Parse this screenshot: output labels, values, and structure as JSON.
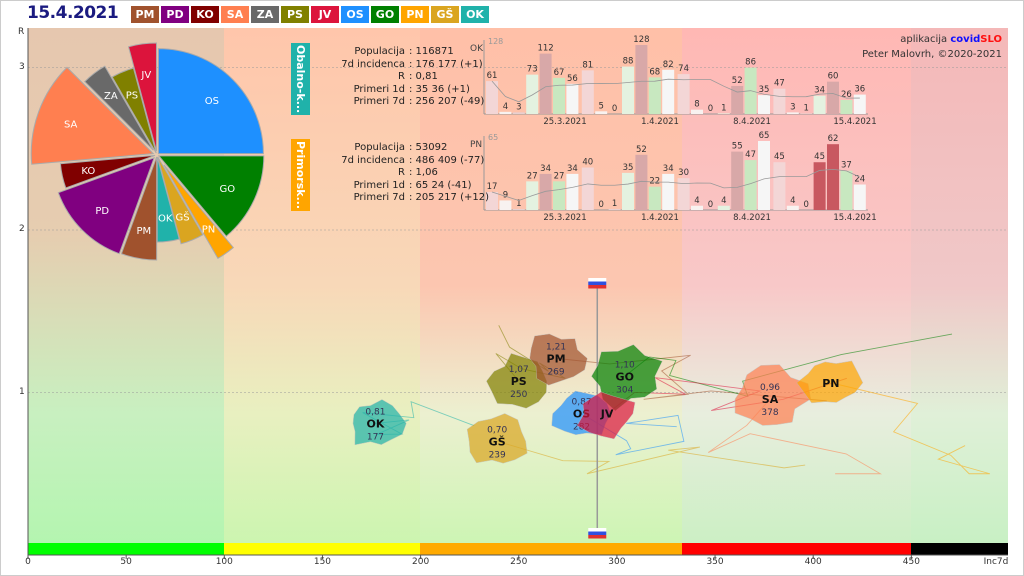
{
  "date": "15.4.2021",
  "regions": [
    {
      "code": "PM",
      "color": "#a0522d"
    },
    {
      "code": "PD",
      "color": "#800080"
    },
    {
      "code": "KO",
      "color": "#800000"
    },
    {
      "code": "SA",
      "color": "#ff7f50"
    },
    {
      "code": "ZA",
      "color": "#696969"
    },
    {
      "code": "PS",
      "color": "#808000"
    },
    {
      "code": "JV",
      "color": "#dc143c"
    },
    {
      "code": "OS",
      "color": "#1e90ff"
    },
    {
      "code": "GO",
      "color": "#008000"
    },
    {
      "code": "PN",
      "color": "#ffa500"
    },
    {
      "code": "GŠ",
      "color": "#daa520"
    },
    {
      "code": "OK",
      "color": "#20b2aa"
    }
  ],
  "axes": {
    "y_label": "R",
    "y_ticks": [
      "1",
      "2",
      "3"
    ],
    "x_label": "Inc7d",
    "x_ticks": [
      "0",
      "50",
      "100",
      "150",
      "200",
      "250",
      "300",
      "350",
      "400",
      "450"
    ]
  },
  "credit": {
    "prefix": "aplikacija",
    "brand1": "covid",
    "brand2": "SLO",
    "author": "Peter Malovrh, ©2020-2021"
  },
  "pie": [
    {
      "code": "OS",
      "share": 90
    },
    {
      "code": "GO",
      "share": 50
    },
    {
      "code": "PN",
      "share": 10
    },
    {
      "code": "GŠ",
      "share": 15
    },
    {
      "code": "OK",
      "share": 15
    },
    {
      "code": "PM",
      "share": 20
    },
    {
      "code": "PD",
      "share": 50
    },
    {
      "code": "KO",
      "share": 15
    },
    {
      "code": "SA",
      "share": 50
    },
    {
      "code": "ZA",
      "share": 15
    },
    {
      "code": "PS",
      "share": 15
    },
    {
      "code": "JV",
      "share": 15
    }
  ],
  "panels": [
    {
      "tab": "Obalno-k...",
      "color": "#20b2aa",
      "code": "OK",
      "max": "128",
      "rows": [
        [
          "Populacija",
          ": 116871"
        ],
        [
          "7d incidenca",
          ": 176 177 (+1)"
        ],
        [
          "R",
          ": 0,81"
        ],
        [
          "Primeri 1d",
          ": 35 36 (+1)"
        ],
        [
          "Primeri 7d",
          ": 256 207 (-49)"
        ]
      ],
      "bars": [
        61,
        4,
        3,
        73,
        112,
        67,
        56,
        81,
        5,
        0,
        88,
        128,
        68,
        82,
        74,
        8,
        0,
        1,
        52,
        86,
        35,
        47,
        3,
        1,
        34,
        60,
        26,
        36
      ]
    },
    {
      "tab": "Primorsk...",
      "color": "#ffa500",
      "code": "PN",
      "max": "65",
      "rows": [
        [
          "Populacija",
          ": 53092"
        ],
        [
          "7d incidenca",
          ": 486 409 (-77)"
        ],
        [
          "R",
          ": 1,06"
        ],
        [
          "Primeri 1d",
          ": 65 24 (-41)"
        ],
        [
          "Primeri 7d",
          ": 205 217 (+12)"
        ]
      ],
      "bars": [
        17,
        9,
        1,
        27,
        34,
        27,
        34,
        40,
        0,
        1,
        35,
        52,
        22,
        34,
        30,
        4,
        0,
        4,
        55,
        47,
        65,
        45,
        4,
        0,
        45,
        62,
        37,
        24
      ]
    }
  ],
  "bar_dates": [
    "25.3.2021",
    "1.4.2021",
    "8.4.2021",
    "15.4.2021"
  ],
  "map": [
    {
      "code": "OK",
      "r": "0,81",
      "inc": "177",
      "incx": 177,
      "rv": 0.81
    },
    {
      "code": "GŠ",
      "r": "0,70",
      "inc": "239",
      "incx": 239,
      "rv": 0.7
    },
    {
      "code": "PS",
      "r": "1,07",
      "inc": "250",
      "incx": 250,
      "rv": 1.07
    },
    {
      "code": "PM",
      "r": "1,21",
      "inc": "269",
      "incx": 269,
      "rv": 1.21
    },
    {
      "code": "GO",
      "r": "1,10",
      "inc": "304",
      "incx": 304,
      "rv": 1.1
    },
    {
      "code": "OS",
      "r": "0,87",
      "inc": "282",
      "incx": 282,
      "rv": 0.87
    },
    {
      "code": "JV",
      "r": "",
      "inc": "",
      "incx": 295,
      "rv": 0.87
    },
    {
      "code": "SA",
      "r": "0,96",
      "inc": "378",
      "incx": 378,
      "rv": 0.96
    },
    {
      "code": "PN",
      "r": "",
      "inc": "",
      "incx": 409,
      "rv": 1.06
    }
  ],
  "slovenia_inc": 290
}
